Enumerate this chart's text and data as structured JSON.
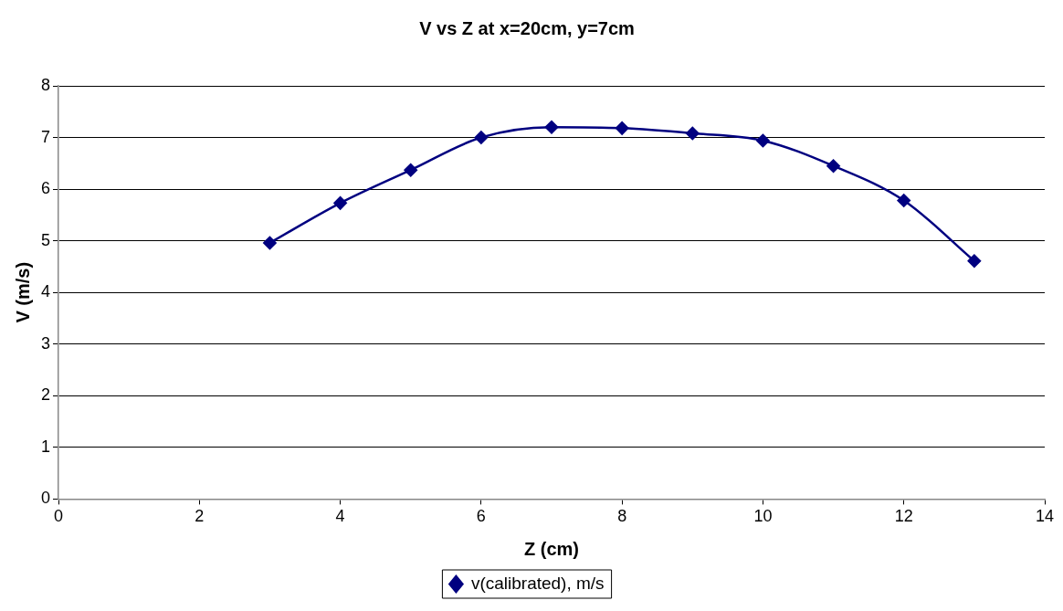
{
  "chart_data": {
    "type": "line",
    "title": "V vs Z at x=20cm, y=7cm",
    "xlabel": "Z (cm)",
    "ylabel": "V (m/s)",
    "x": [
      3,
      4,
      5,
      6,
      7,
      8,
      9,
      10,
      11,
      12,
      13
    ],
    "series": [
      {
        "name": "v(calibrated), m/s",
        "color": "#000080",
        "values": [
          4.96,
          5.73,
          6.37,
          7.0,
          7.2,
          7.18,
          7.08,
          6.94,
          6.45,
          5.78,
          4.61
        ]
      }
    ],
    "xlim": [
      0,
      14
    ],
    "xticks": [
      0,
      2,
      4,
      6,
      8,
      10,
      12,
      14
    ],
    "ylim": [
      0,
      8
    ],
    "yticks": [
      0,
      1,
      2,
      3,
      4,
      5,
      6,
      7,
      8
    ],
    "grid": "y",
    "legend": "bottom",
    "marker": "diamond",
    "line_style": "solid"
  }
}
